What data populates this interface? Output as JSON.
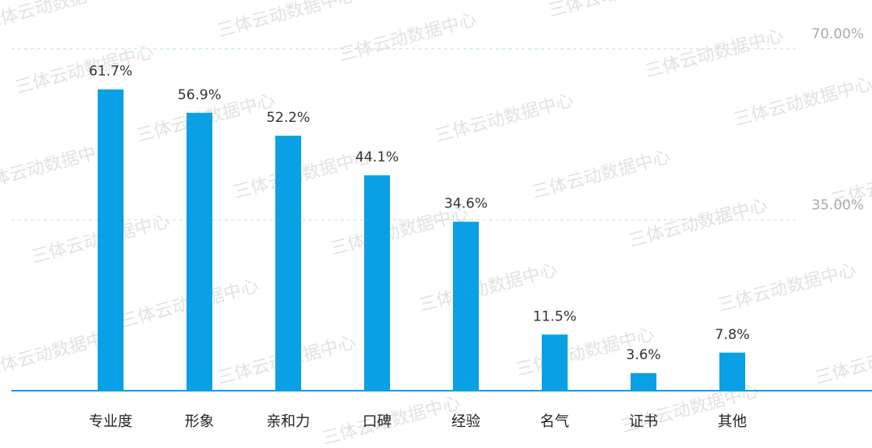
{
  "chart_data": {
    "type": "bar",
    "categories": [
      "专业度",
      "形象",
      "亲和力",
      "口碑",
      "经验",
      "名气",
      "证书",
      "其他"
    ],
    "values": [
      61.7,
      56.9,
      52.2,
      44.1,
      34.6,
      11.5,
      3.6,
      7.8
    ],
    "value_labels": [
      "61.7%",
      "56.9%",
      "52.2%",
      "44.1%",
      "34.6%",
      "11.5%",
      "3.6%",
      "7.8%"
    ],
    "color": "#0aa0e6",
    "ylim": [
      0,
      80
    ],
    "yticks": [
      {
        "value": 35,
        "label": "35.00%"
      },
      {
        "value": 70,
        "label": "70.00%"
      }
    ],
    "grid": true,
    "watermark": "三体云动数据中心"
  }
}
